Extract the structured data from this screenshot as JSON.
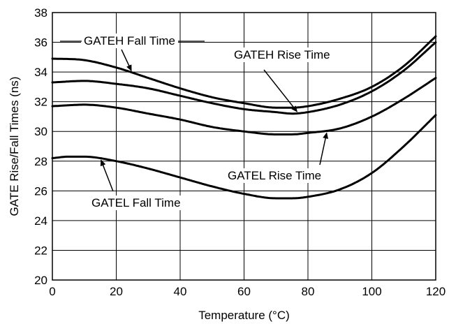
{
  "chart_data": {
    "type": "line",
    "xlabel": "Temperature (°C)",
    "ylabel": "GATE Rise/Fall Times (ns)",
    "xlim": [
      0,
      120
    ],
    "ylim": [
      20,
      38
    ],
    "x_ticks": [
      0,
      20,
      40,
      60,
      80,
      100,
      120
    ],
    "y_ticks": [
      20,
      22,
      24,
      26,
      28,
      30,
      32,
      34,
      36,
      38
    ],
    "grid": true,
    "legend": "none",
    "line_color": "#000000",
    "series": [
      {
        "name": "GATEH Fall Time",
        "x": [
          0,
          10,
          20,
          30,
          40,
          50,
          60,
          70,
          75,
          80,
          90,
          100,
          110,
          120
        ],
        "y": [
          34.9,
          34.8,
          34.3,
          33.6,
          32.9,
          32.3,
          31.9,
          31.6,
          31.6,
          31.7,
          32.2,
          33.0,
          34.4,
          36.4
        ]
      },
      {
        "name": "GATEH Rise Time",
        "x": [
          0,
          10,
          20,
          30,
          40,
          50,
          60,
          70,
          75,
          80,
          90,
          100,
          110,
          120
        ],
        "y": [
          33.3,
          33.4,
          33.2,
          32.9,
          32.4,
          31.9,
          31.5,
          31.3,
          31.2,
          31.3,
          31.8,
          32.7,
          34.1,
          36.0
        ]
      },
      {
        "name": "GATEL Rise Time",
        "x": [
          0,
          10,
          20,
          30,
          40,
          50,
          60,
          70,
          75,
          80,
          90,
          100,
          110,
          120
        ],
        "y": [
          31.7,
          31.8,
          31.6,
          31.2,
          30.8,
          30.3,
          30.0,
          29.8,
          29.8,
          29.9,
          30.2,
          31.0,
          32.2,
          33.6
        ]
      },
      {
        "name": "GATEL Fall Time",
        "x": [
          0,
          5,
          10,
          20,
          30,
          40,
          50,
          60,
          70,
          75,
          80,
          90,
          100,
          110,
          120
        ],
        "y": [
          28.2,
          28.3,
          28.3,
          28.0,
          27.5,
          26.9,
          26.3,
          25.8,
          25.5,
          25.5,
          25.6,
          26.1,
          27.2,
          29.0,
          31.1
        ]
      }
    ],
    "annotations": [
      {
        "label": "GATEH Fall Time",
        "series": 0
      },
      {
        "label": "GATEH Rise Time",
        "series": 1
      },
      {
        "label": "GATEL Rise Time",
        "series": 2
      },
      {
        "label": "GATEL Fall Time",
        "series": 3
      }
    ]
  }
}
